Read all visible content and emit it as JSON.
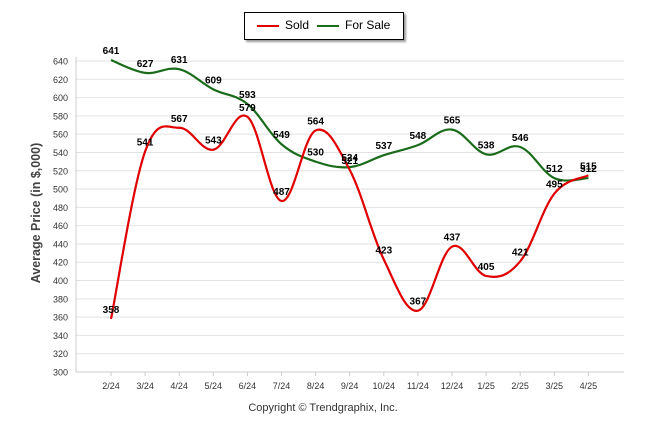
{
  "chart_data": {
    "type": "line",
    "categories": [
      "2/24",
      "3/24",
      "4/24",
      "5/24",
      "6/24",
      "7/24",
      "8/24",
      "9/24",
      "10/24",
      "11/24",
      "12/24",
      "1/25",
      "2/25",
      "3/25",
      "4/25"
    ],
    "series": [
      {
        "name": "Sold",
        "color": "#e00000",
        "values": [
          358,
          541,
          567,
          543,
          579,
          487,
          564,
          521,
          423,
          367,
          437,
          405,
          421,
          495,
          515
        ]
      },
      {
        "name": "For Sale",
        "color": "#1a6b1a",
        "values": [
          641,
          627,
          631,
          609,
          593,
          549,
          530,
          524,
          537,
          548,
          565,
          538,
          546,
          512,
          512
        ]
      }
    ],
    "title": "",
    "xlabel": "",
    "ylabel": "Average Price (in $,000)",
    "ylim": [
      300,
      640
    ],
    "yticks": [
      300,
      320,
      340,
      360,
      380,
      400,
      420,
      440,
      460,
      480,
      500,
      520,
      540,
      560,
      580,
      600,
      620,
      640
    ],
    "grid": true,
    "legend_position": "top-center"
  },
  "footer": "Copyright © Trendgraphix, Inc."
}
